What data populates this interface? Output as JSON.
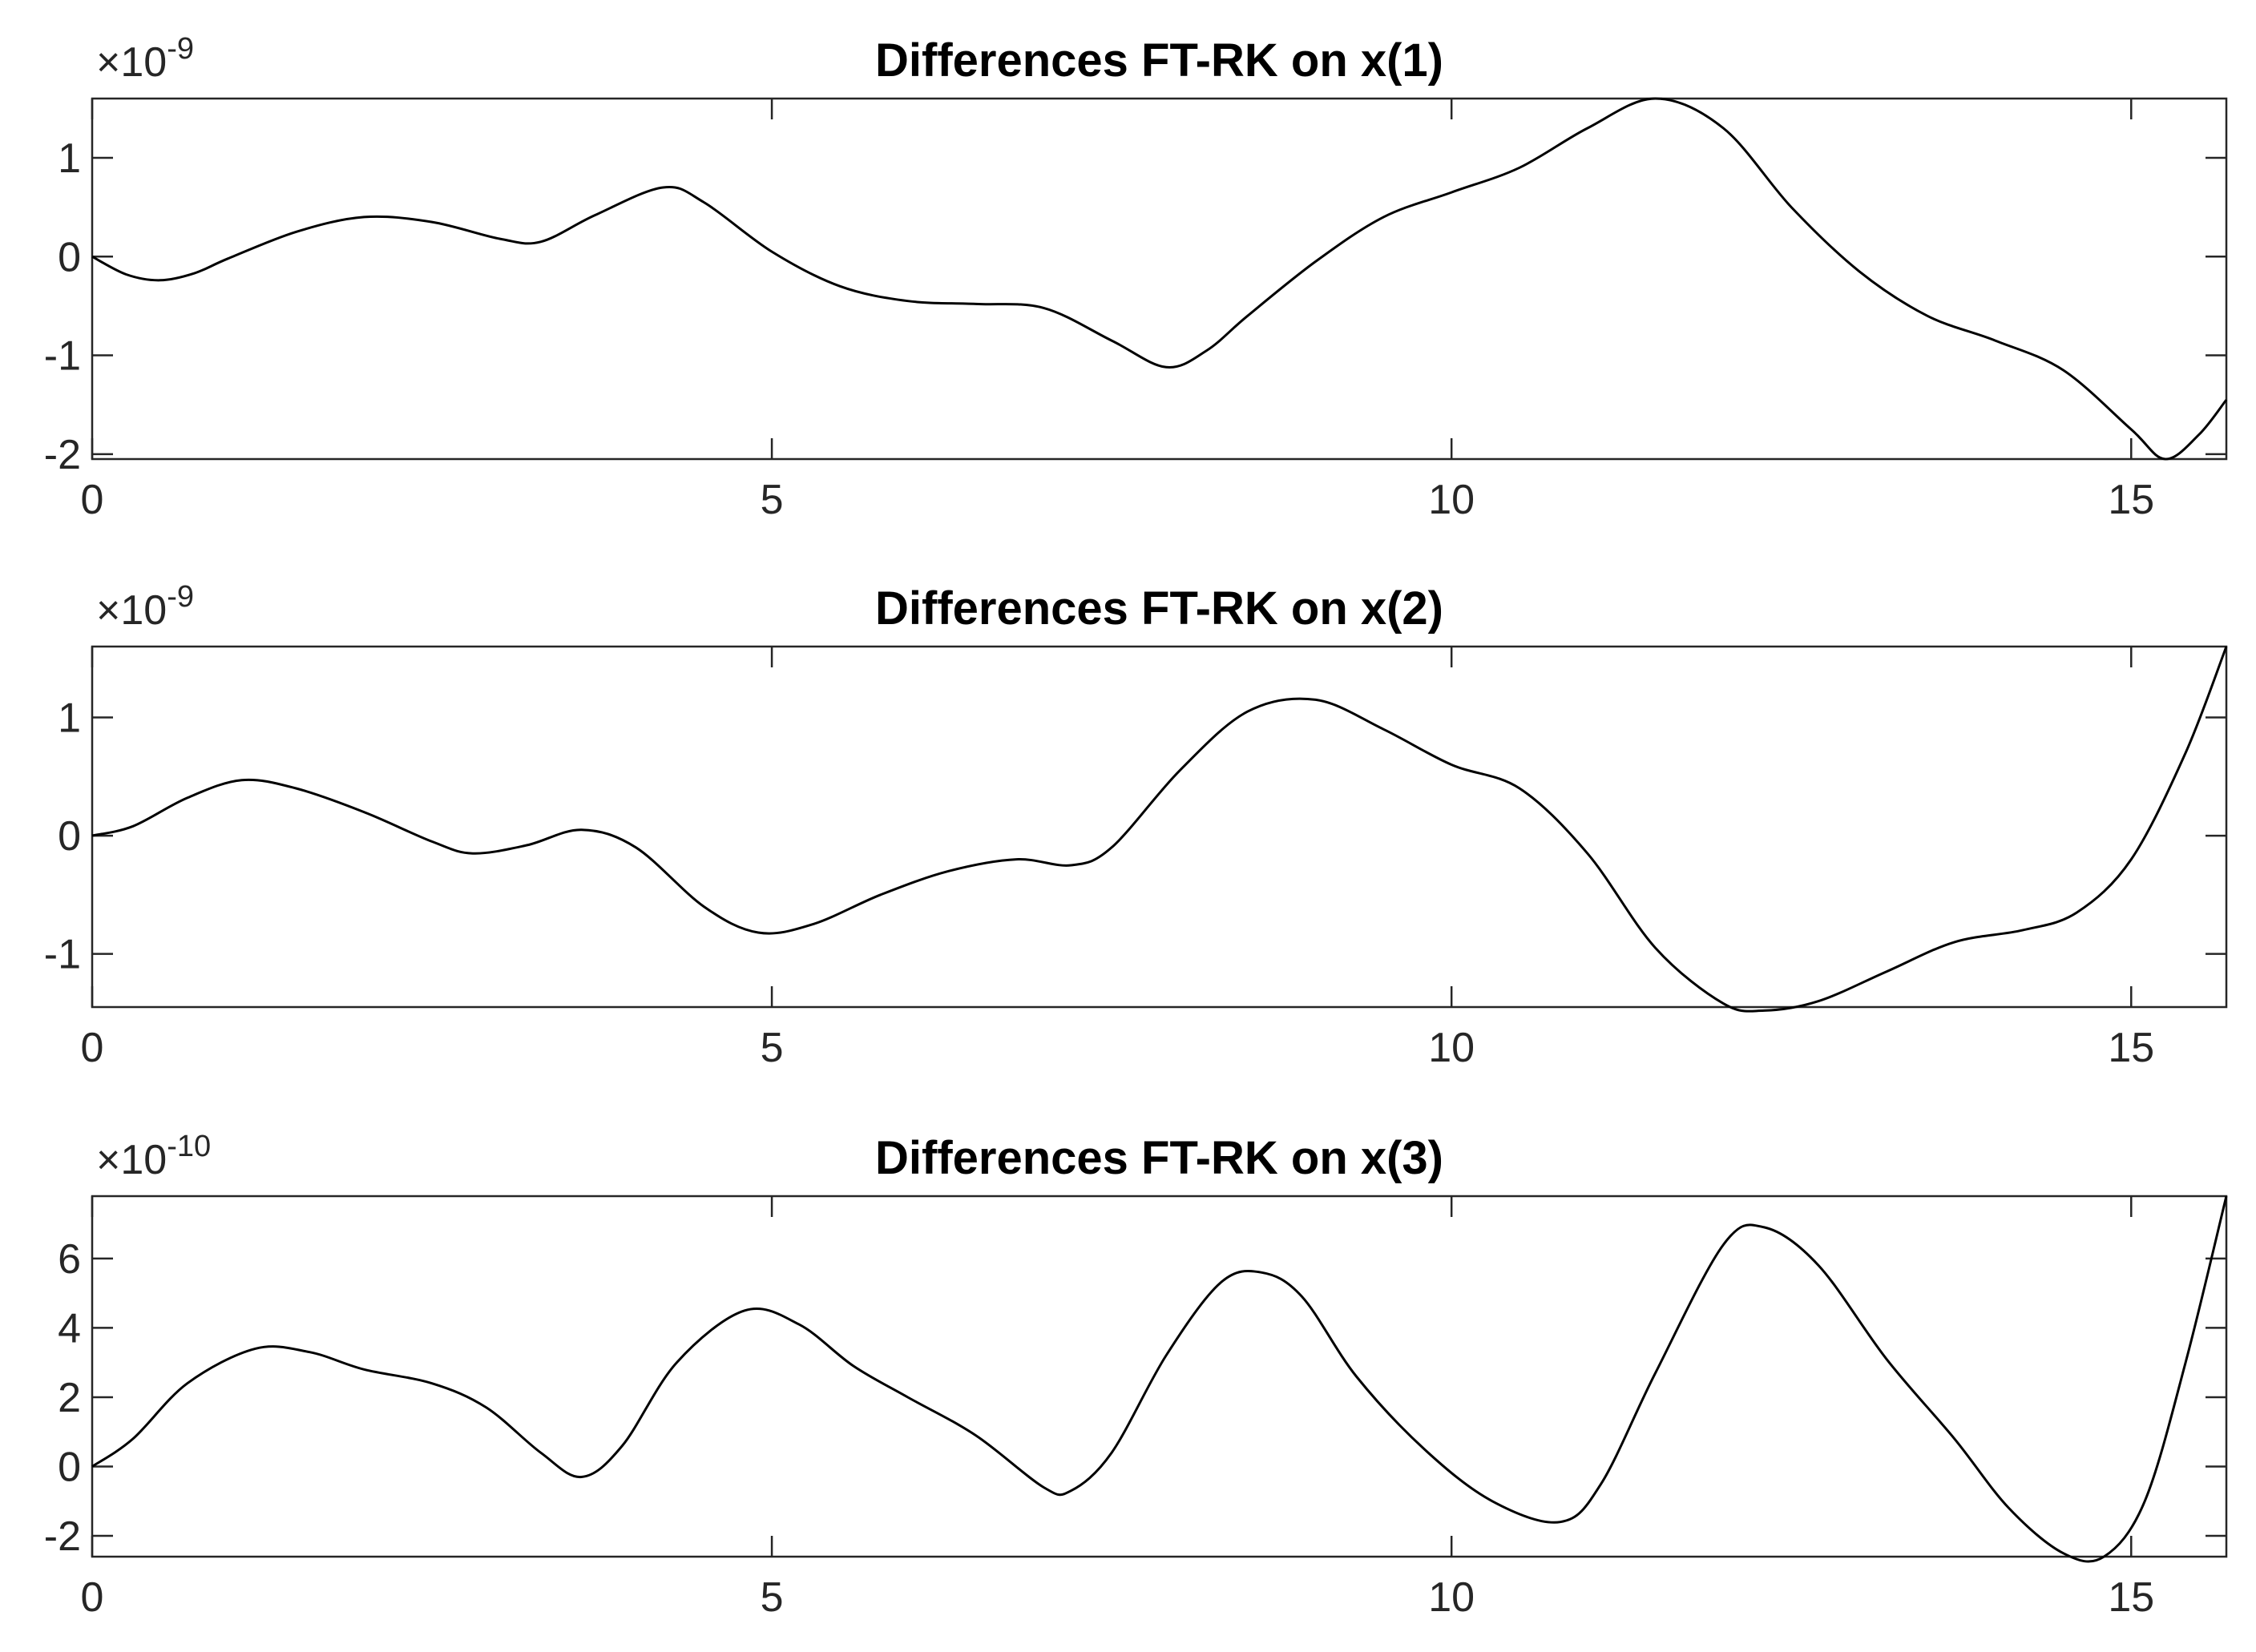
{
  "colors": {
    "background": "#ffffff",
    "axes": "#262626",
    "line": "#000000"
  },
  "chart_data": [
    {
      "type": "line",
      "title": "Differences FT-RK on x(1)",
      "xlabel": "",
      "ylabel": "",
      "xlim": [
        0,
        15.7
      ],
      "ylim": [
        -2.05,
        1.6
      ],
      "y_exponent": "-9",
      "x_ticks": [
        0,
        5,
        10,
        15
      ],
      "y_ticks": [
        -2,
        -1,
        0,
        1
      ],
      "grid": false,
      "series": [
        {
          "x": [
            0,
            0.25,
            0.5,
            0.75,
            1.0,
            1.5,
            2.0,
            2.5,
            3.0,
            3.3,
            3.7,
            4.2,
            4.5,
            5.0,
            5.5,
            6.0,
            6.5,
            7.0,
            7.5,
            7.9,
            8.2,
            8.5,
            9.0,
            9.5,
            10.0,
            10.5,
            11.0,
            11.5,
            12.0,
            12.5,
            13.0,
            13.5,
            14.0,
            14.5,
            15.0,
            15.25,
            15.5,
            15.7
          ],
          "y": [
            0.0,
            -0.18,
            -0.24,
            -0.17,
            -0.02,
            0.25,
            0.4,
            0.35,
            0.18,
            0.15,
            0.42,
            0.7,
            0.55,
            0.05,
            -0.3,
            -0.45,
            -0.48,
            -0.52,
            -0.85,
            -1.12,
            -0.95,
            -0.6,
            -0.05,
            0.4,
            0.65,
            0.9,
            1.3,
            1.6,
            1.3,
            0.5,
            -0.15,
            -0.6,
            -0.85,
            -1.15,
            -1.75,
            -2.05,
            -1.8,
            -1.45
          ]
        }
      ]
    },
    {
      "type": "line",
      "title": "Differences FT-RK on x(2)",
      "xlabel": "",
      "ylabel": "",
      "xlim": [
        0,
        15.7
      ],
      "ylim": [
        -1.45,
        1.6
      ],
      "y_exponent": "-9",
      "x_ticks": [
        0,
        5,
        10,
        15
      ],
      "y_ticks": [
        -1,
        0,
        1
      ],
      "grid": false,
      "series": [
        {
          "x": [
            0,
            0.3,
            0.7,
            1.1,
            1.5,
            2.0,
            2.5,
            2.8,
            3.2,
            3.6,
            4.0,
            4.5,
            4.9,
            5.3,
            5.8,
            6.3,
            6.8,
            7.2,
            7.5,
            8.0,
            8.5,
            9.0,
            9.5,
            10.0,
            10.5,
            11.0,
            11.5,
            12.0,
            12.3,
            12.7,
            13.2,
            13.7,
            14.2,
            14.6,
            15.0,
            15.4,
            15.7
          ],
          "y": [
            0.0,
            0.08,
            0.32,
            0.47,
            0.4,
            0.2,
            -0.05,
            -0.15,
            -0.08,
            0.05,
            -0.1,
            -0.6,
            -0.82,
            -0.75,
            -0.5,
            -0.3,
            -0.2,
            -0.25,
            -0.1,
            0.55,
            1.05,
            1.15,
            0.9,
            0.6,
            0.4,
            -0.15,
            -0.95,
            -1.42,
            -1.48,
            -1.4,
            -1.15,
            -0.9,
            -0.8,
            -0.65,
            -0.2,
            0.7,
            1.6
          ]
        }
      ]
    },
    {
      "type": "line",
      "title": "Differences FT-RK on x(3)",
      "xlabel": "",
      "ylabel": "",
      "xlim": [
        0,
        15.7
      ],
      "ylim": [
        -2.6,
        7.8
      ],
      "y_exponent": "-10",
      "x_ticks": [
        0,
        5,
        10,
        15
      ],
      "y_ticks": [
        -2,
        0,
        2,
        4,
        6
      ],
      "grid": false,
      "series": [
        {
          "x": [
            0,
            0.3,
            0.7,
            1.2,
            1.6,
            2.0,
            2.5,
            2.9,
            3.3,
            3.6,
            3.9,
            4.3,
            4.8,
            5.2,
            5.6,
            6.0,
            6.5,
            7.0,
            7.2,
            7.5,
            7.9,
            8.3,
            8.6,
            8.9,
            9.3,
            9.8,
            10.3,
            10.8,
            11.1,
            11.5,
            12.0,
            12.3,
            12.7,
            13.2,
            13.7,
            14.1,
            14.5,
            14.8,
            15.1,
            15.4,
            15.7
          ],
          "y": [
            0.0,
            0.8,
            2.4,
            3.4,
            3.3,
            2.8,
            2.4,
            1.7,
            0.4,
            -0.3,
            0.6,
            3.0,
            4.5,
            4.1,
            2.9,
            2.0,
            0.9,
            -0.6,
            -0.7,
            0.4,
            3.2,
            5.3,
            5.6,
            4.9,
            2.6,
            0.5,
            -1.0,
            -1.6,
            -0.5,
            2.7,
            6.4,
            6.9,
            5.8,
            3.1,
            0.8,
            -1.2,
            -2.5,
            -2.6,
            -1.0,
            3.0,
            7.8
          ]
        }
      ]
    }
  ]
}
